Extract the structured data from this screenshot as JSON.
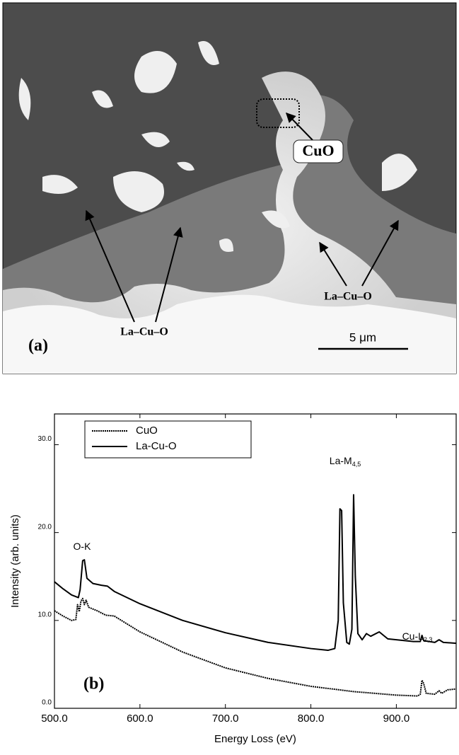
{
  "micrograph": {
    "panel_label": "(a)",
    "region_label": "CuO",
    "arrow_labels": [
      "La–Cu–O",
      "La–Cu–O"
    ],
    "scale_bar": "5 μm"
  },
  "chart_data": {
    "type": "line",
    "panel_label": "(b)",
    "xlabel": "Energy Loss (eV)",
    "ylabel": "Intensity (arb. units)",
    "xlim": [
      500,
      970
    ],
    "ylim": [
      0,
      33.5
    ],
    "xticks": [
      {
        "value": 500,
        "label": "500.0"
      },
      {
        "value": 600,
        "label": "600.0"
      },
      {
        "value": 700,
        "label": "700.0"
      },
      {
        "value": 800,
        "label": "800.0"
      },
      {
        "value": 900,
        "label": "900.0"
      }
    ],
    "yticks": [
      {
        "value": 0,
        "label": "0.0"
      },
      {
        "value": 10,
        "label": "10.0"
      },
      {
        "value": 20,
        "label": "20.0"
      },
      {
        "value": 30,
        "label": "30.0"
      }
    ],
    "legend": "upper left",
    "annotations": [
      {
        "text": "O-K"
      },
      {
        "text": "La-M",
        "subscript": "4,5"
      },
      {
        "text": "Cu-L",
        "subscript": "2,3"
      }
    ],
    "series": [
      {
        "name": "CuO",
        "color": "#000000",
        "style": "dotted",
        "x": [
          500,
          510,
          520,
          525,
          527,
          529,
          531,
          533,
          535,
          537,
          540,
          550,
          560,
          570,
          600,
          650,
          700,
          750,
          800,
          850,
          900,
          925,
          928,
          930,
          932,
          935,
          945,
          950,
          953,
          960,
          970
        ],
        "values": [
          11.1,
          10.5,
          10.0,
          10.1,
          11.8,
          11.0,
          12.2,
          12.5,
          11.8,
          12.3,
          11.5,
          11.1,
          10.6,
          10.5,
          8.7,
          6.4,
          4.6,
          3.4,
          2.5,
          1.9,
          1.5,
          1.4,
          1.6,
          3.2,
          2.8,
          1.7,
          1.6,
          2.0,
          1.7,
          2.1,
          2.2
        ]
      },
      {
        "name": "La-Cu-O",
        "color": "#000000",
        "style": "solid",
        "x": [
          500,
          510,
          520,
          528,
          530,
          533,
          535,
          538,
          545,
          555,
          562,
          570,
          600,
          650,
          700,
          750,
          800,
          820,
          828,
          832,
          834,
          836,
          838,
          842,
          845,
          848,
          850,
          852,
          855,
          860,
          865,
          870,
          880,
          890,
          920,
          928,
          930,
          932,
          945,
          950,
          955,
          970
        ],
        "values": [
          14.4,
          13.6,
          12.9,
          12.6,
          13.5,
          16.8,
          16.9,
          14.8,
          14.2,
          14.0,
          13.9,
          13.3,
          11.9,
          10.0,
          8.6,
          7.5,
          6.8,
          6.6,
          6.8,
          10.0,
          22.7,
          22.5,
          12.0,
          7.5,
          7.3,
          9.0,
          24.3,
          15.0,
          8.5,
          7.8,
          8.5,
          8.2,
          8.7,
          7.9,
          7.6,
          7.6,
          8.3,
          7.7,
          7.5,
          7.8,
          7.5,
          7.4
        ]
      }
    ]
  }
}
